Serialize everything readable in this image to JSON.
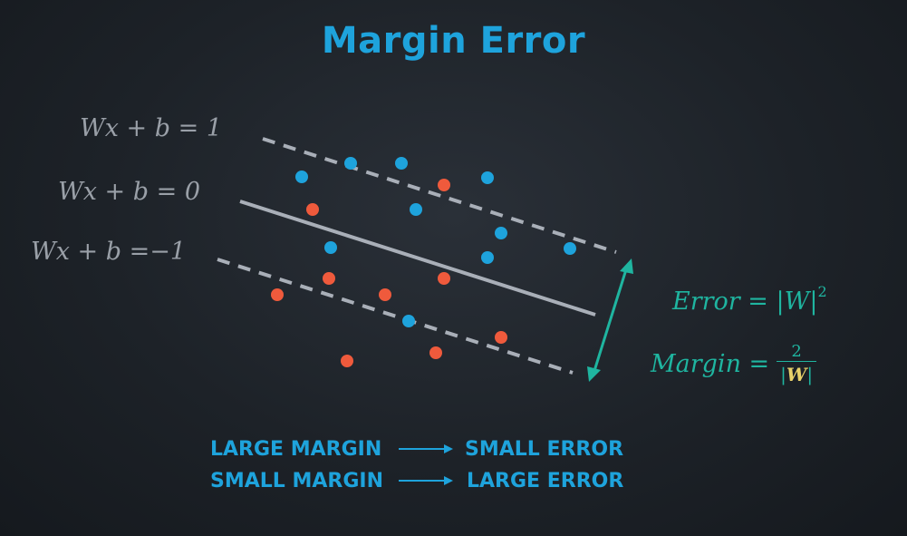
{
  "title": "Margin Error",
  "equations": {
    "upper": "Wx + b = 1",
    "middle": "Wx + b = 0",
    "lower": "Wx + b =−1"
  },
  "formulas": {
    "error_lhs": "Error =",
    "error_rhs": "|W|",
    "error_exponent": "2",
    "margin_lhs": "Margin =",
    "margin_numerator": "2",
    "margin_denominator": "W"
  },
  "rules": [
    {
      "left": "LARGE MARGIN",
      "right": "SMALL ERROR"
    },
    {
      "left": "SMALL MARGIN",
      "right": "LARGE ERROR"
    }
  ],
  "colors": {
    "blue_point": "#1ea3dc",
    "red_point": "#ef5a3c",
    "line": "#a9afb8",
    "teal": "#1fb5a0",
    "accent_text": "#1ea3dc"
  },
  "icons": {
    "rule_arrow": "right-arrow-icon",
    "margin_arrow": "double-arrow-icon"
  }
}
